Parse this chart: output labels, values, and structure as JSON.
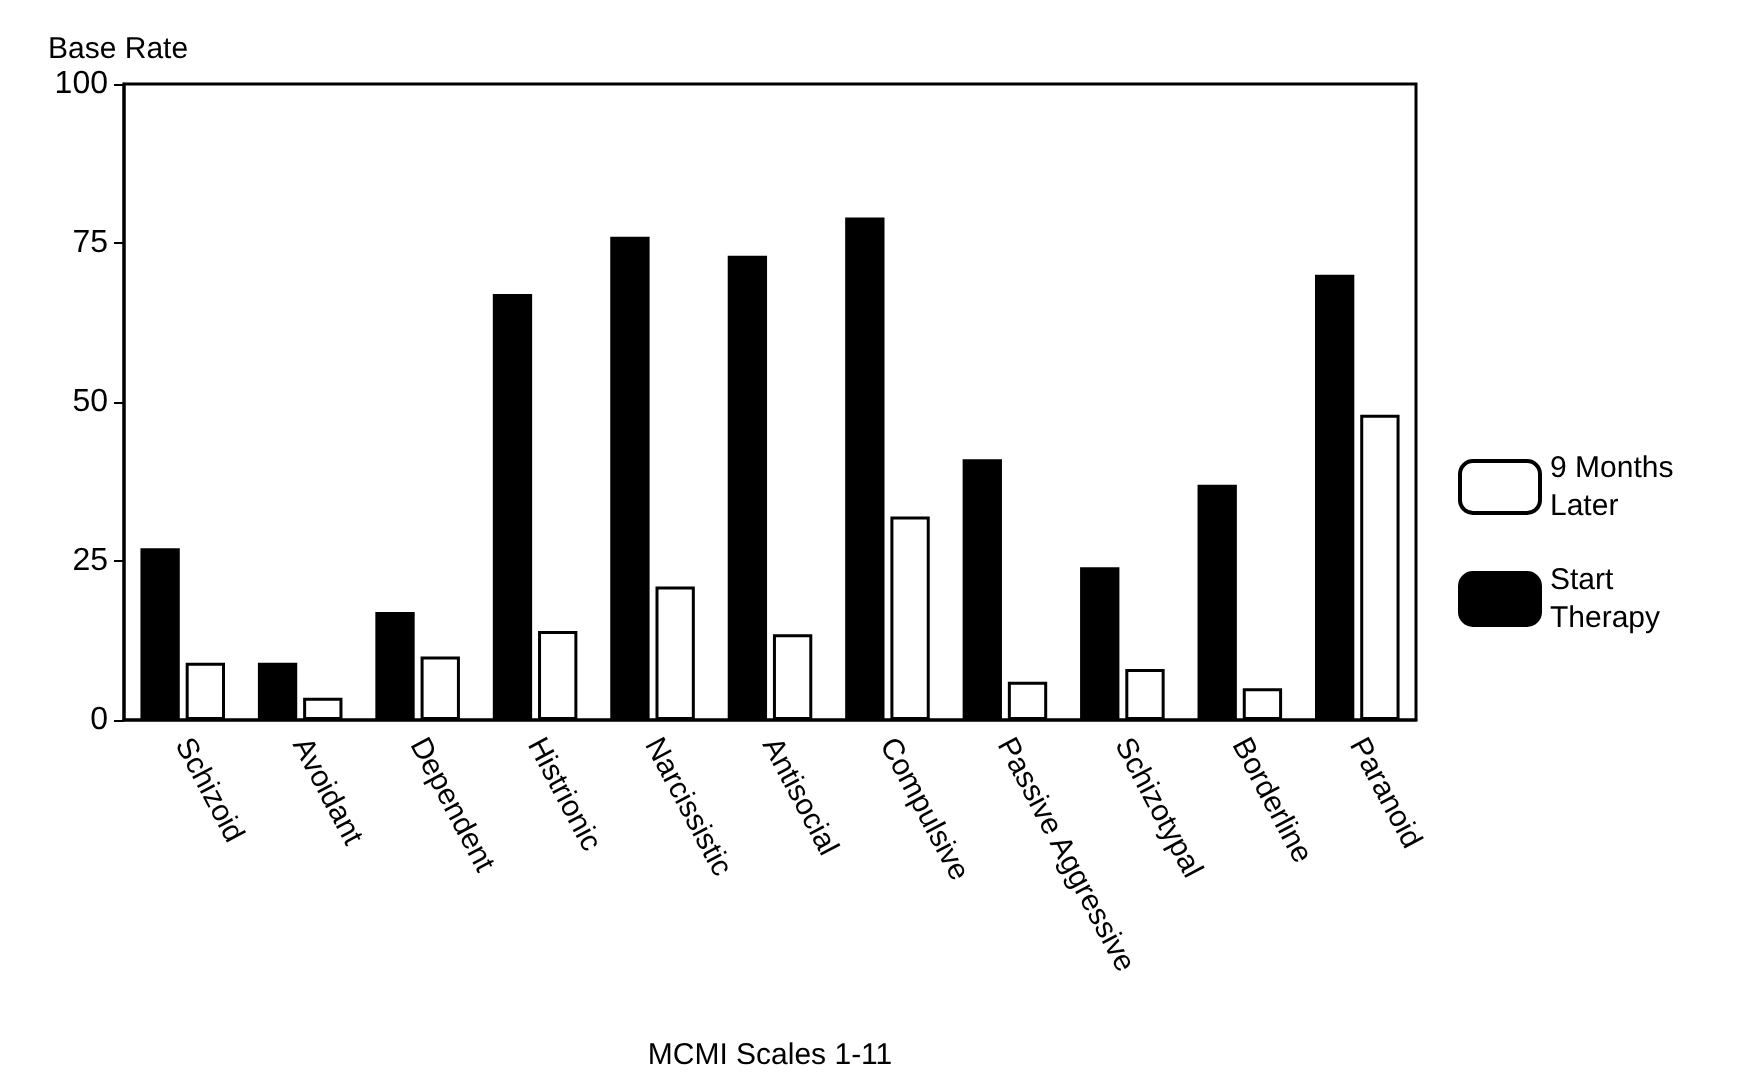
{
  "chart_data": {
    "type": "bar",
    "ylabel": "Base Rate",
    "xlabel": "MCMI Scales 1-11",
    "categories": [
      "Schizoid",
      "Avoidant",
      "Dependent",
      "Histrionic",
      "Narcissistic",
      "Antisocial",
      "Compulsive",
      "Passive Aggressive",
      "Schizotypal",
      "Borderline",
      "Paranoid"
    ],
    "series": [
      {
        "name": "Start Therapy",
        "color": "#000000",
        "values": [
          27,
          9,
          17,
          67,
          76,
          73,
          79,
          41,
          24,
          37,
          70
        ]
      },
      {
        "name": "9 Months Later",
        "color": "#ffffff",
        "values": [
          9,
          3.5,
          10,
          14,
          21,
          13.5,
          32,
          6,
          8,
          5,
          48
        ]
      }
    ],
    "ylim": [
      0,
      100
    ],
    "yticks": [
      0,
      25,
      50,
      75,
      100
    ],
    "grid": false,
    "legend": "right"
  }
}
